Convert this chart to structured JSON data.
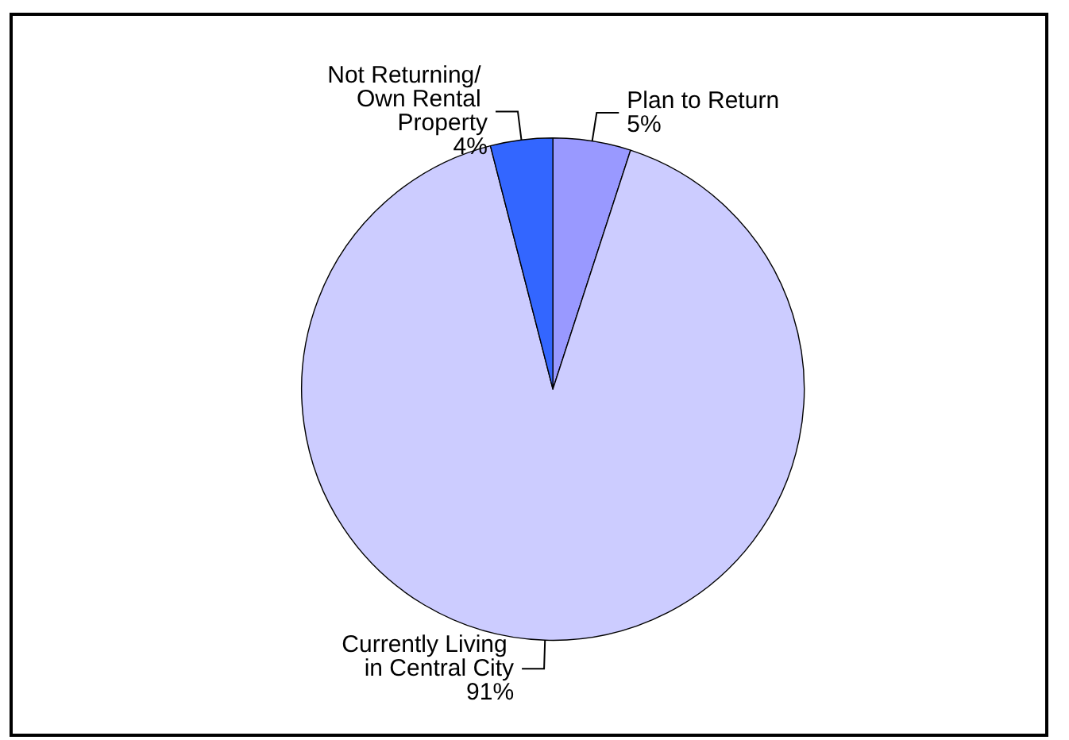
{
  "chart_data": {
    "type": "pie",
    "categories": [
      "Plan to Return",
      "Currently Living in Central City",
      "Not Returning/ Own Rental Property"
    ],
    "values": [
      5,
      91,
      4
    ],
    "value_labels": [
      "5%",
      "91%",
      "4%"
    ],
    "colors": [
      "#9999ff",
      "#ccccff",
      "#3366ff"
    ],
    "legend": false
  }
}
